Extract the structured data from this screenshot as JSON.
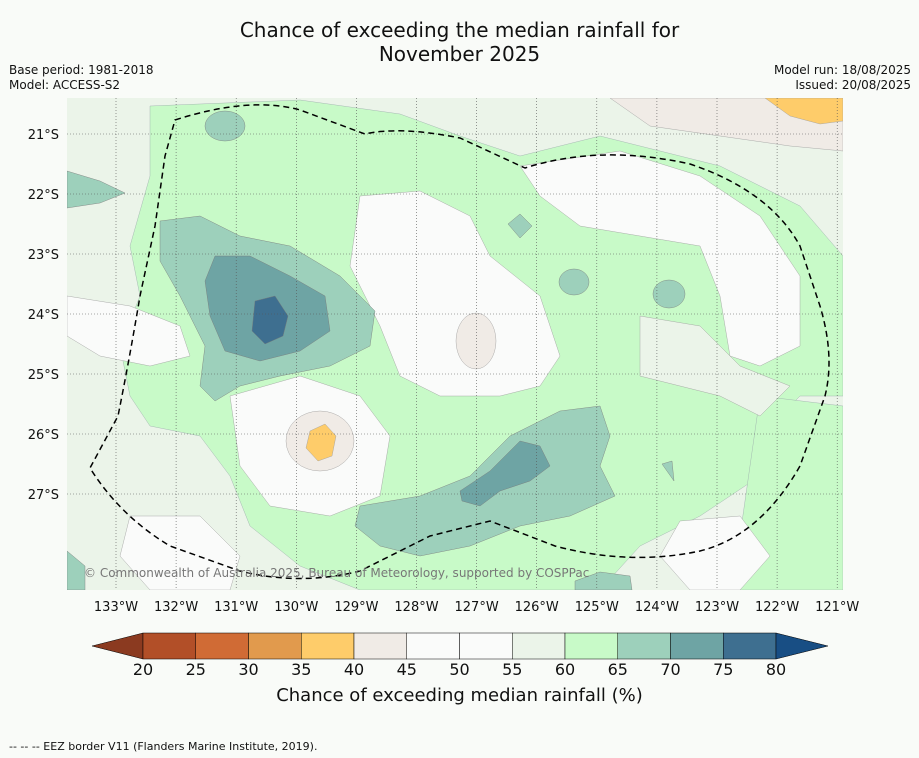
{
  "title_line1": "Chance of exceeding the median rainfall for",
  "title_line2": "November 2025",
  "meta": {
    "base_period": "Base period: 1981-2018",
    "model": "Model: ACCESS-S2",
    "model_run": "Model run: 18/08/2025",
    "issued": "Issued: 20/08/2025"
  },
  "map": {
    "copyright": "© Commonwealth of Australia 2025, Bureau of Meteorology, supported by COSPPac",
    "lon_labels": [
      "133°W",
      "132°W",
      "131°W",
      "130°W",
      "129°W",
      "128°W",
      "127°W",
      "126°W",
      "125°W",
      "124°W",
      "123°W",
      "122°W",
      "121°W"
    ],
    "lat_labels": [
      "21°S",
      "22°S",
      "23°S",
      "24°S",
      "25°S",
      "26°S",
      "27°S"
    ]
  },
  "colorbar": {
    "title": "Chance of exceeding median rainfall (%)",
    "ticks": [
      "20",
      "25",
      "30",
      "35",
      "40",
      "45",
      "50",
      "55",
      "60",
      "65",
      "70",
      "75",
      "80"
    ],
    "colors": [
      "#8b3a20",
      "#b24f28",
      "#d06b35",
      "#e19a4d",
      "#fecc6a",
      "#f0ebe6",
      "#fafbfa",
      "#fafbfa",
      "#ebf4e9",
      "#c8fac8",
      "#9dd0bb",
      "#6ea4a4",
      "#3e6f90",
      "#184e84"
    ]
  },
  "footnote": "--  --  -- EEZ border V11 (Flanders Marine Institute, 2019)."
}
